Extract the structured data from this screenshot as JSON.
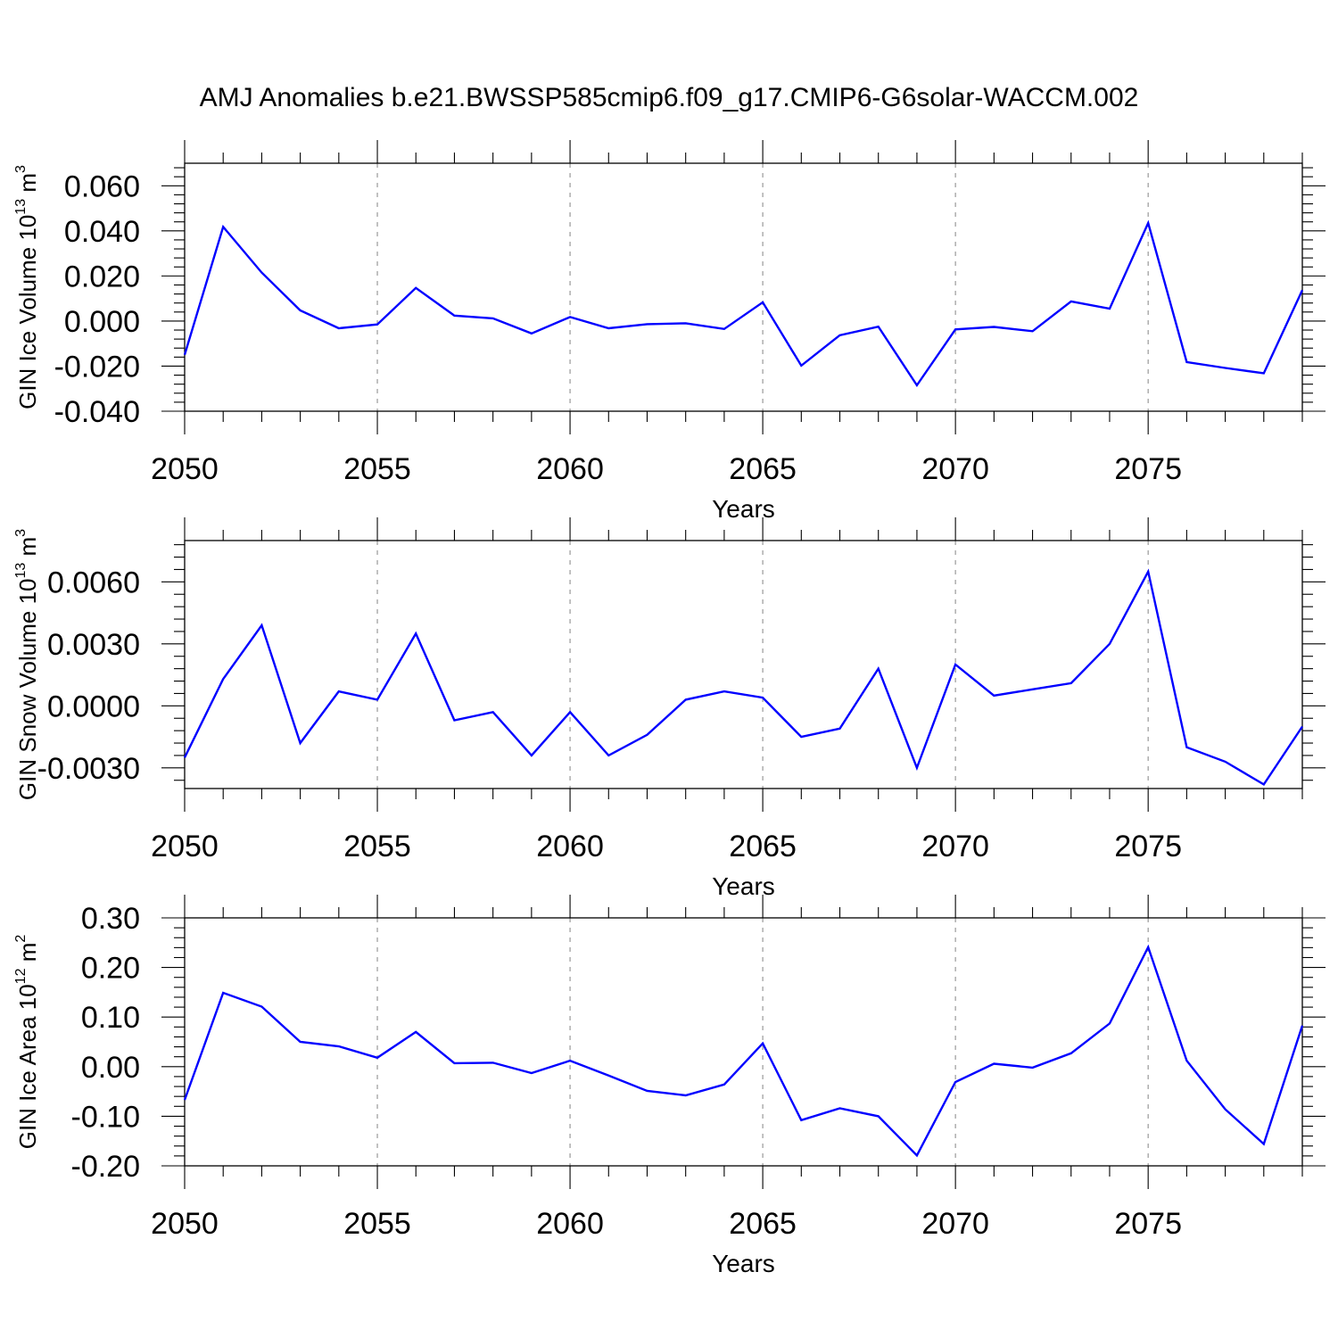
{
  "figure_title": "AMJ Anomalies b.e21.BWSSP585cmip6.f09_g17.CMIP6-G6solar-WACCM.002",
  "colors": {
    "line": "#0000ff",
    "axis": "#000000",
    "grid": "#999999"
  },
  "chart_data": [
    {
      "type": "line",
      "ylabel": {
        "text": "GIN Ice Volume 10",
        "sup": "13",
        "unit": " m",
        "unit_sup": "3"
      },
      "xlabel": "Years",
      "xlim": [
        2050,
        2079
      ],
      "ylim": [
        -0.04,
        0.07
      ],
      "yticks": [
        -0.04,
        -0.02,
        0.0,
        0.02,
        0.04,
        0.06
      ],
      "ytick_labels": [
        "-0.040",
        "-0.020",
        "0.000",
        "0.020",
        "0.040",
        "0.060"
      ],
      "xticks": [
        2050,
        2055,
        2060,
        2065,
        2070,
        2075
      ],
      "xtick_labels": [
        "2050",
        "2055",
        "2060",
        "2065",
        "2070",
        "2075"
      ],
      "grid_x": [
        2055,
        2060,
        2065,
        2070,
        2075
      ],
      "x": [
        2050,
        2051,
        2052,
        2053,
        2054,
        2055,
        2056,
        2057,
        2058,
        2059,
        2060,
        2061,
        2062,
        2063,
        2064,
        2065,
        2066,
        2067,
        2068,
        2069,
        2070,
        2071,
        2072,
        2073,
        2074,
        2075,
        2076,
        2077,
        2078,
        2079
      ],
      "values": [
        -0.015,
        0.0418,
        0.0215,
        0.0047,
        -0.0032,
        -0.0015,
        0.0147,
        0.0024,
        0.0012,
        -0.0055,
        0.0018,
        -0.0032,
        -0.0014,
        -0.001,
        -0.0035,
        0.0083,
        -0.0198,
        -0.0063,
        -0.0025,
        -0.0285,
        -0.0037,
        -0.0026,
        -0.0045,
        0.0087,
        0.0055,
        0.0435,
        -0.0182,
        -0.0208,
        -0.0232,
        0.0137
      ]
    },
    {
      "type": "line",
      "ylabel": {
        "text": "GIN Snow Volume 10",
        "sup": "13",
        "unit": " m",
        "unit_sup": "3"
      },
      "xlabel": "Years",
      "xlim": [
        2050,
        2079
      ],
      "ylim": [
        -0.004,
        0.008
      ],
      "yticks": [
        -0.003,
        0.0,
        0.003,
        0.006
      ],
      "ytick_labels": [
        "-0.0030",
        "0.0000",
        "0.0030",
        "0.0060"
      ],
      "xticks": [
        2050,
        2055,
        2060,
        2065,
        2070,
        2075
      ],
      "xtick_labels": [
        "2050",
        "2055",
        "2060",
        "2065",
        "2070",
        "2075"
      ],
      "grid_x": [
        2055,
        2060,
        2065,
        2070,
        2075
      ],
      "x": [
        2050,
        2051,
        2052,
        2053,
        2054,
        2055,
        2056,
        2057,
        2058,
        2059,
        2060,
        2061,
        2062,
        2063,
        2064,
        2065,
        2066,
        2067,
        2068,
        2069,
        2070,
        2071,
        2072,
        2073,
        2074,
        2075,
        2076,
        2077,
        2078,
        2079
      ],
      "values": [
        -0.0025,
        0.0013,
        0.0039,
        -0.0018,
        0.0007,
        0.0003,
        0.0035,
        -0.0007,
        -0.0003,
        -0.0024,
        -0.0003,
        -0.0024,
        -0.0014,
        0.0003,
        0.0007,
        0.0004,
        -0.0015,
        -0.0011,
        0.0018,
        -0.003,
        0.002,
        0.0005,
        0.0008,
        0.0011,
        0.003,
        0.0065,
        -0.002,
        -0.0027,
        -0.0038,
        -0.001
      ]
    },
    {
      "type": "line",
      "ylabel": {
        "text": "GIN Ice Area 10",
        "sup": "12",
        "unit": " m",
        "unit_sup": "2"
      },
      "xlabel": "Years",
      "xlim": [
        2050,
        2079
      ],
      "ylim": [
        -0.2,
        0.3
      ],
      "yticks": [
        -0.2,
        -0.1,
        0.0,
        0.1,
        0.2,
        0.3
      ],
      "ytick_labels": [
        "-0.20",
        "-0.10",
        "0.00",
        "0.10",
        "0.20",
        "0.30"
      ],
      "xticks": [
        2050,
        2055,
        2060,
        2065,
        2070,
        2075
      ],
      "xtick_labels": [
        "2050",
        "2055",
        "2060",
        "2065",
        "2070",
        "2075"
      ],
      "grid_x": [
        2055,
        2060,
        2065,
        2070,
        2075
      ],
      "x": [
        2050,
        2051,
        2052,
        2053,
        2054,
        2055,
        2056,
        2057,
        2058,
        2059,
        2060,
        2061,
        2062,
        2063,
        2064,
        2065,
        2066,
        2067,
        2068,
        2069,
        2070,
        2071,
        2072,
        2073,
        2074,
        2075,
        2076,
        2077,
        2078,
        2079
      ],
      "values": [
        -0.067,
        0.149,
        0.121,
        0.05,
        0.041,
        0.018,
        0.07,
        0.007,
        0.008,
        -0.013,
        0.012,
        -0.018,
        -0.049,
        -0.058,
        -0.036,
        0.047,
        -0.108,
        -0.084,
        -0.1,
        -0.179,
        -0.031,
        0.006,
        -0.002,
        0.027,
        0.087,
        0.241,
        0.012,
        -0.086,
        -0.156,
        0.083
      ]
    }
  ]
}
